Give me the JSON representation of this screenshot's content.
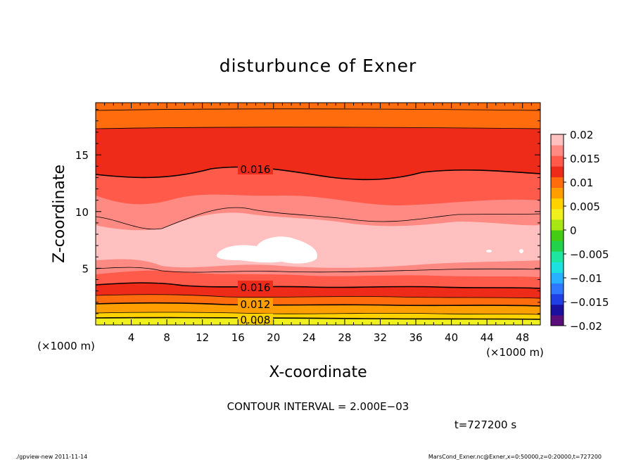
{
  "chart_data": {
    "type": "heatmap",
    "title": "disturbunce of Exner",
    "xlabel": "X-coordinate",
    "ylabel": "Z-coordinate",
    "x_unit": "(×1000 m)",
    "y_unit": "(×1000 m)",
    "xlim": [
      0,
      50
    ],
    "ylim": [
      0,
      19.6
    ],
    "x_ticks": [
      4,
      8,
      12,
      16,
      20,
      24,
      28,
      32,
      36,
      40,
      44,
      48
    ],
    "y_ticks": [
      5,
      10,
      15
    ],
    "contour_labels": [
      {
        "text": "0.016",
        "x": 18.0,
        "z": 13.9
      },
      {
        "text": "0.016",
        "x": 18.0,
        "z": 3.2
      },
      {
        "text": "0.012",
        "x": 18.0,
        "z": 1.8
      },
      {
        "text": "0.008",
        "x": 18.0,
        "z": 0.5
      }
    ],
    "colorbar": {
      "ticks": [
        "0.02",
        "0.015",
        "0.01",
        "0.005",
        "0",
        "−0.005",
        "−0.01",
        "−0.015",
        "−0.02"
      ],
      "levels": [
        -0.02,
        -0.0175,
        -0.015,
        -0.0125,
        -0.01,
        -0.0075,
        -0.005,
        -0.0025,
        0,
        0.0025,
        0.005,
        0.0075,
        0.01,
        0.0125,
        0.015,
        0.0175,
        0.02
      ],
      "colors": [
        "#5a0e7a",
        "#1a10a0",
        "#2040e6",
        "#2f78ff",
        "#29b0ff",
        "#1de0e0",
        "#1ee6a0",
        "#22d24a",
        "#44cc14",
        "#a8e614",
        "#f0f01e",
        "#ffd200",
        "#ff9e00",
        "#ff6c0e",
        "#ee2a18",
        "#ff5a4a",
        "#ff8a84",
        "#ffc0bf"
      ]
    },
    "contour_interval": "CONTOUR INTERVAL = 2.000E−03",
    "time": "t=727200 s"
  },
  "footer": {
    "left": "./gpview-new  2011-11-14",
    "right": "MarsCond_Exner.nc@Exner,x=0:50000,z=0:20000,t=727200"
  }
}
